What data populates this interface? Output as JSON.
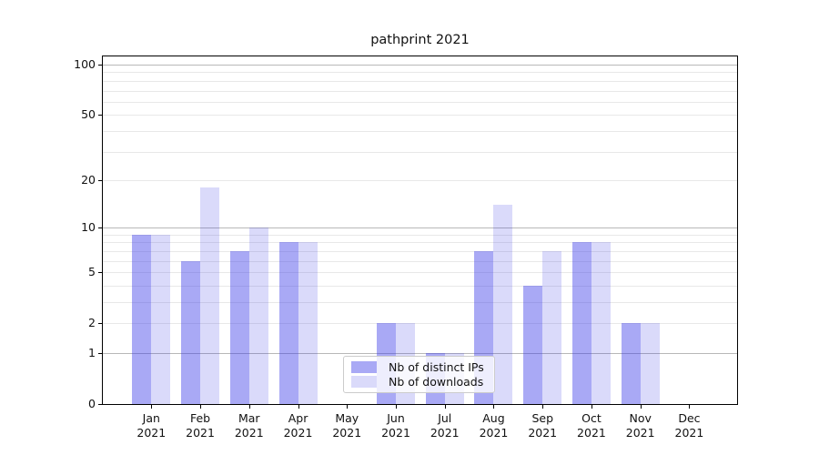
{
  "chart_data": {
    "type": "bar",
    "title": "pathprint 2021",
    "x_months": [
      "Jan",
      "Feb",
      "Mar",
      "Apr",
      "May",
      "Jun",
      "Jul",
      "Aug",
      "Sep",
      "Oct",
      "Nov",
      "Dec"
    ],
    "x_year": "2021",
    "series": [
      {
        "name": "Nb of distinct IPs",
        "color": "rgba(50,50,230,0.42)",
        "color_on_white_hex": "#a9a9f5",
        "values": [
          9,
          6,
          7,
          8,
          0,
          2,
          1,
          7,
          4,
          8,
          2,
          0
        ]
      },
      {
        "name": "Nb of downloads",
        "color": "rgba(50,50,230,0.18)",
        "color_on_white_hex": "#dadafa",
        "values": [
          9,
          18,
          10,
          8,
          0,
          2,
          1,
          14,
          7,
          8,
          2,
          0
        ]
      }
    ],
    "y_scale": "log1p",
    "y_ticks": [
      0,
      1,
      2,
      5,
      10,
      20,
      50,
      100
    ],
    "grid_major_values": [
      1,
      10,
      100
    ],
    "grid_minor_values": [
      2,
      3,
      4,
      5,
      6,
      7,
      8,
      9,
      20,
      30,
      40,
      50,
      60,
      70,
      80,
      90
    ],
    "ylim": [
      0,
      112
    ],
    "grid": true,
    "legend_position": "lower center",
    "axis_color": "#000000",
    "grid_major_color": "#b8b8b8",
    "grid_minor_color": "#e8e8e8"
  }
}
